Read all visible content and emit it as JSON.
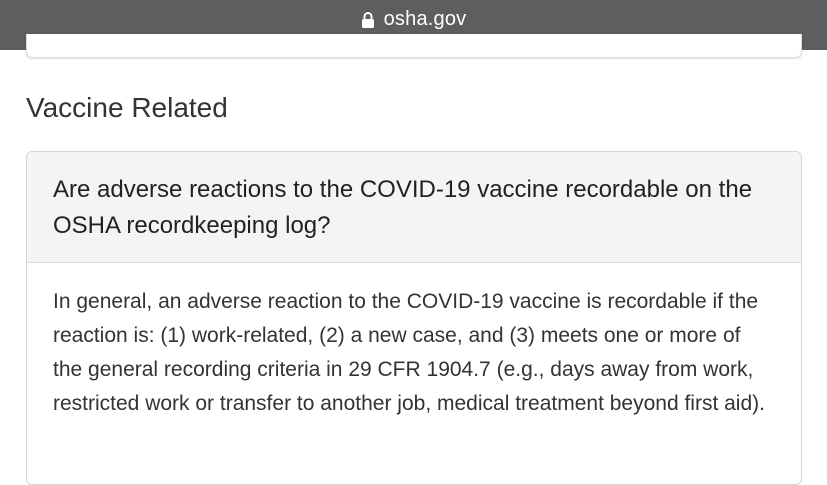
{
  "browser": {
    "url": "osha.gov",
    "icon": "lock-icon"
  },
  "section": {
    "heading": "Vaccine Related"
  },
  "faq": {
    "question": "Are adverse reactions to the COVID-19 vaccine recordable on the OSHA recordkeeping log?",
    "answer": "In general, an adverse reaction to the COVID-19 vaccine is recordable if the reaction is: (1) work-related, (2) a new case, and (3) meets one or more of the general recording criteria in 29 CFR 1904.7 (e.g., days away from work, restricted work or transfer to another job, medical treatment beyond first aid)."
  },
  "colors": {
    "url_bar": "#5e5e5e",
    "question_bg": "#f4f4f4",
    "heading_text": "#333333"
  }
}
